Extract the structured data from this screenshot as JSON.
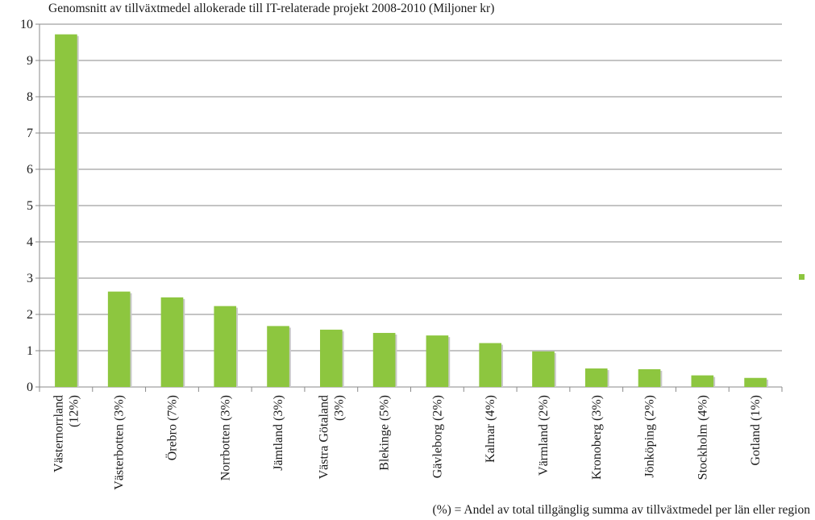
{
  "chart_data": {
    "type": "bar",
    "title": "Genomsnitt av tillväxtmedel allokerade till IT-relaterade projekt 2008-2010 (Miljoner kr)",
    "xlabel": "",
    "ylabel": "",
    "ylim": [
      0,
      10
    ],
    "yticks": [
      "0",
      "1",
      "2",
      "3",
      "4",
      "5",
      "6",
      "7",
      "8",
      "9",
      "10"
    ],
    "grid": true,
    "legend": "right",
    "bar_color": "#8dc63f",
    "categories": [
      [
        "Västernorrland",
        "(12%)"
      ],
      [
        "Västerbotten (3%)"
      ],
      [
        "Örebro (7%)"
      ],
      [
        "Norrbotten (3%)"
      ],
      [
        "Jämtland (3%)"
      ],
      [
        "Västra Götaland",
        "(3%)"
      ],
      [
        "Blekinge (5%)"
      ],
      [
        "Gävleborg (2%)"
      ],
      [
        "Kalmar (4%)"
      ],
      [
        "Värmland (2%)"
      ],
      [
        "Kronoberg (3%)"
      ],
      [
        "Jönköping (2%)"
      ],
      [
        "Stockholm (4%)"
      ],
      [
        "Gotland (1%)"
      ]
    ],
    "values": [
      9.72,
      2.63,
      2.47,
      2.23,
      1.68,
      1.58,
      1.49,
      1.42,
      1.21,
      0.98,
      0.51,
      0.49,
      0.32,
      0.25
    ],
    "footnote": "(%) = Andel av total tillgänglig summa av tillväxtmedel per län eller region"
  }
}
